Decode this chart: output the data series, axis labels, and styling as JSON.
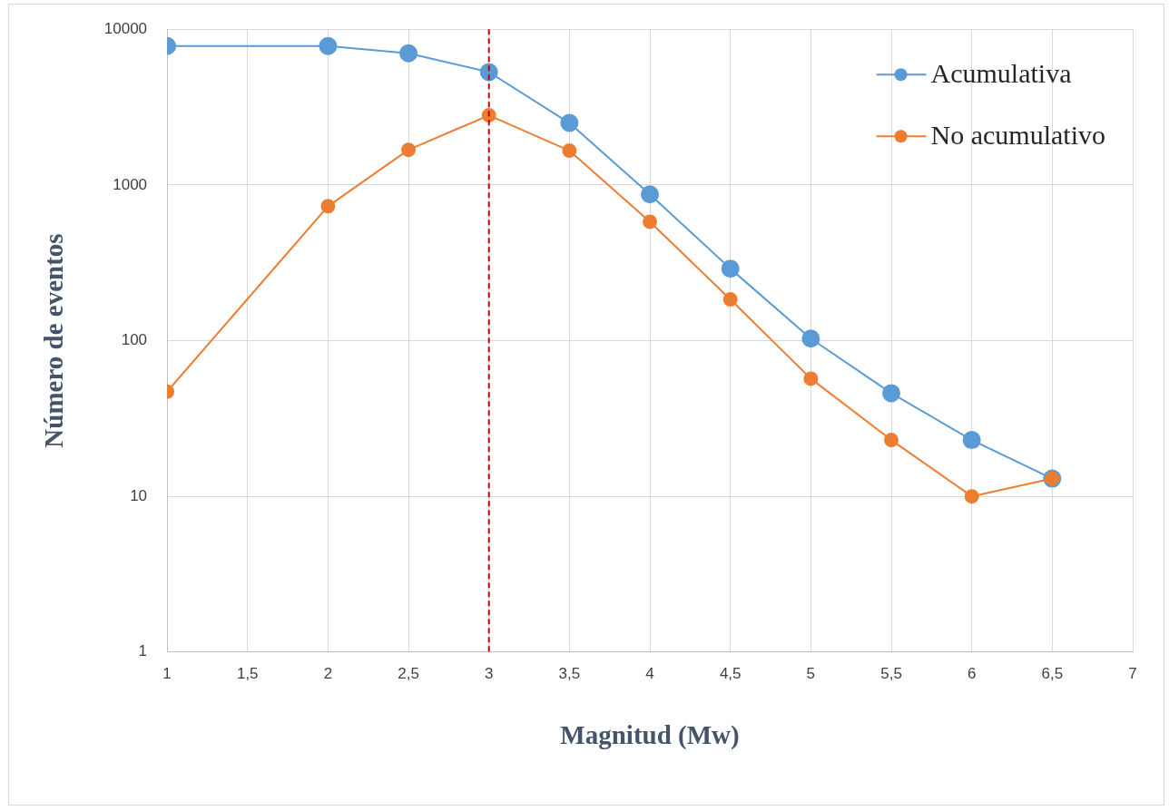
{
  "chart_data": {
    "type": "line",
    "xlabel": "Magnitud (Mw)",
    "ylabel": "Número de eventos",
    "log": "y",
    "grid": true,
    "legend": "top right",
    "marker": "circle",
    "line_style": "solid",
    "xlim": [
      1,
      7
    ],
    "xticks": [
      1,
      {
        "value": 1.5,
        "label": "1,5"
      },
      2,
      {
        "value": 2.5,
        "label": "2,5"
      },
      3,
      {
        "value": 3.5,
        "label": "3,5"
      },
      4,
      {
        "value": 4.5,
        "label": "4,5"
      },
      5,
      {
        "value": 5.5,
        "label": "5,5"
      },
      6,
      {
        "value": 6.5,
        "label": "6,5"
      },
      7
    ],
    "ylim": [
      1,
      10000
    ],
    "yticks": [
      1,
      10,
      100,
      1000,
      10000
    ],
    "x": [
      1,
      2,
      2.5,
      3,
      3.5,
      4,
      4.5,
      5,
      5.5,
      6,
      6.5
    ],
    "series": [
      {
        "name": "Acumulativa",
        "color": "#5b9bd5",
        "values": [
          7800,
          7800,
          7000,
          5300,
          2500,
          870,
          290,
          103,
          46,
          23,
          13
        ]
      },
      {
        "name": "No acumulativo",
        "color": "#ed7d31",
        "values": [
          47,
          730,
          1680,
          2800,
          1660,
          580,
          184,
          57,
          23,
          10,
          13
        ]
      }
    ],
    "ref_lines": [
      {
        "axis": "x",
        "value": 3,
        "color": "#c00000",
        "line_style": "dashed"
      }
    ]
  }
}
